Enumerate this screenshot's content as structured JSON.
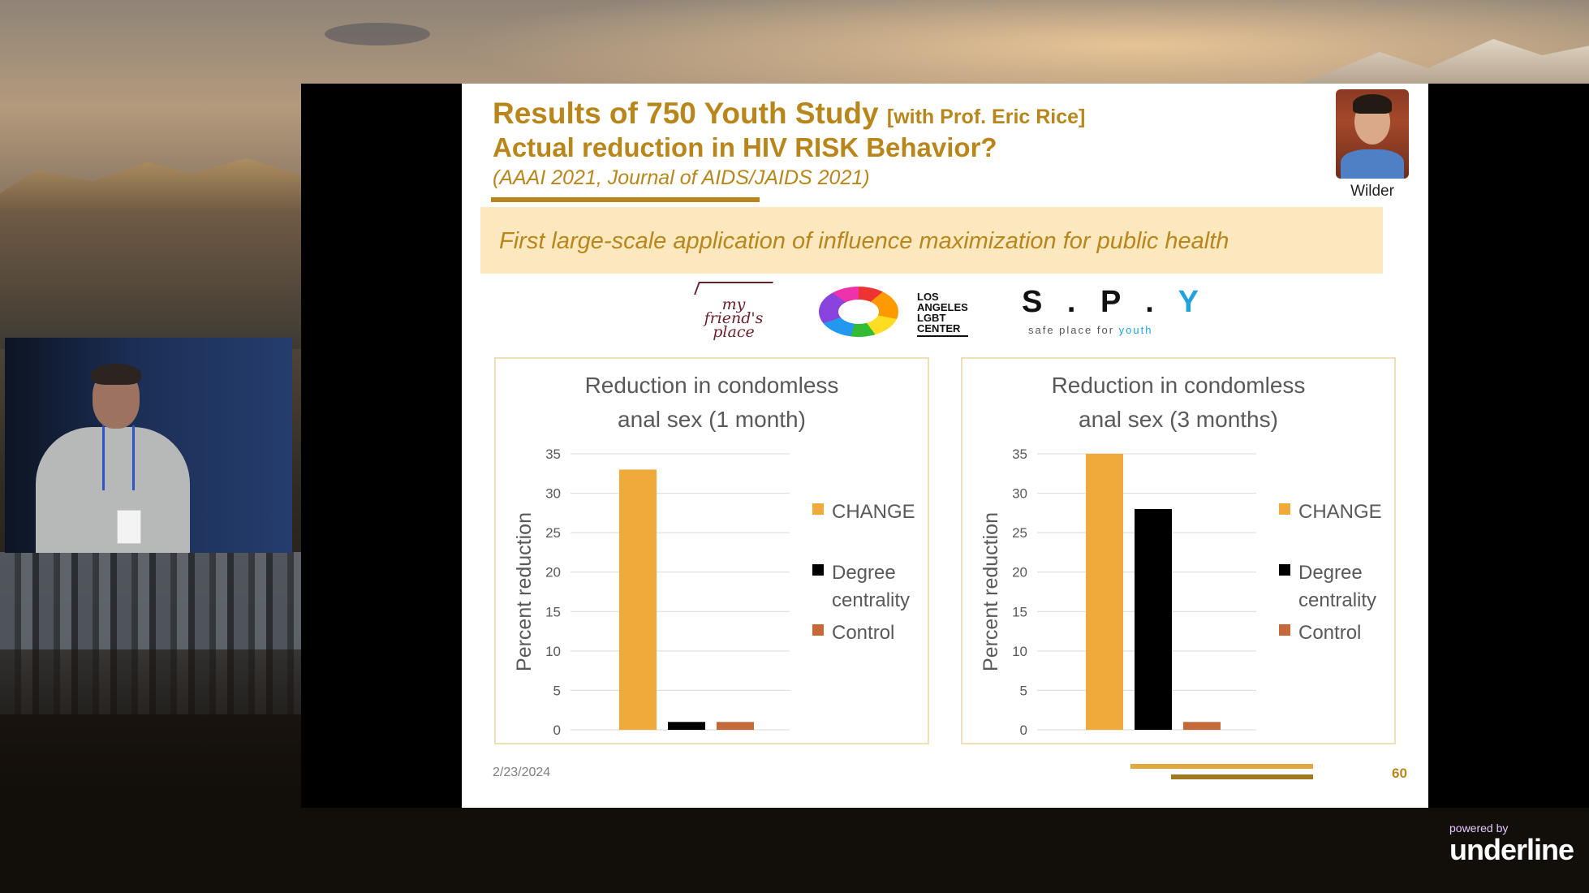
{
  "slide": {
    "title_main": "Results of 750 Youth Study ",
    "title_sub": "[with Prof. Eric Rice]",
    "title_line2": "Actual reduction in HIV RISK Behavior?",
    "citation": "(AAAI 2021, Journal of AIDS/JAIDS 2021)",
    "photo_caption": "Wilder",
    "banner": "First large-scale application of influence maximization for public health",
    "logos": {
      "mfp": [
        "my",
        "friend's",
        "place"
      ],
      "lgbt": [
        "LOS",
        "ANGELES",
        "LGBT",
        "CENTER"
      ],
      "spy_main": "S . P . ",
      "spy_y": "Y",
      "spy_tag": "safe place for ",
      "spy_tag_hl": "youth"
    },
    "date": "2/23/2024",
    "page_number": "60"
  },
  "colors": {
    "accent": "#b8861b",
    "change": "#efaa3a",
    "degree": "#000000",
    "control": "#c5693a"
  },
  "chart_data": [
    {
      "type": "bar",
      "title_lines": [
        "Reduction in condomless",
        "anal sex (1 month)"
      ],
      "ylabel": "Percent reduction",
      "ylim": [
        0,
        35
      ],
      "yticks": [
        0,
        5,
        10,
        15,
        20,
        25,
        30,
        35
      ],
      "grid": true,
      "legend_position": "right",
      "series": [
        {
          "name": "CHANGE",
          "values": [
            33
          ]
        },
        {
          "name": "Degree centrality",
          "values": [
            1
          ]
        },
        {
          "name": "Control",
          "values": [
            1
          ]
        }
      ]
    },
    {
      "type": "bar",
      "title_lines": [
        "Reduction in condomless",
        "anal sex (3 months)"
      ],
      "ylabel": "Percent reduction",
      "ylim": [
        0,
        35
      ],
      "yticks": [
        0,
        5,
        10,
        15,
        20,
        25,
        30,
        35
      ],
      "grid": true,
      "legend_position": "right",
      "series": [
        {
          "name": "CHANGE",
          "values": [
            35
          ]
        },
        {
          "name": "Degree centrality",
          "values": [
            28
          ]
        },
        {
          "name": "Control",
          "values": [
            1
          ]
        }
      ]
    }
  ],
  "legend_labels": {
    "change": "CHANGE",
    "degree_line1": "Degree",
    "degree_line2": "centrality",
    "control": "Control"
  },
  "branding": {
    "powered_by": "powered by",
    "name": "underline"
  }
}
